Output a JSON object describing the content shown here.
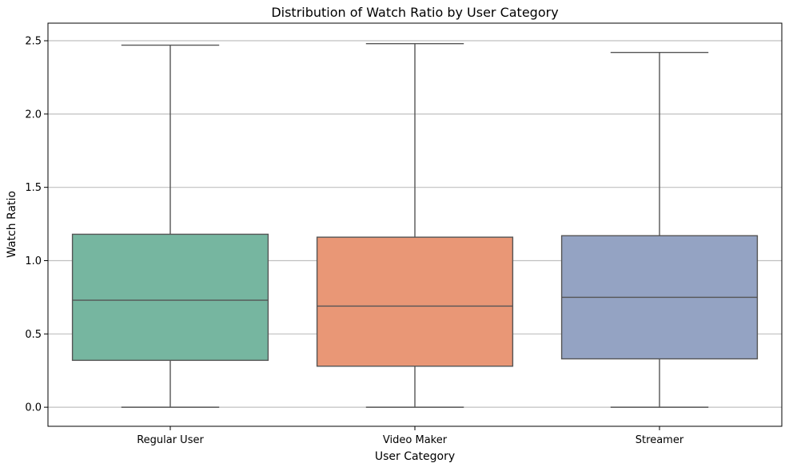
{
  "chart_data": {
    "type": "box",
    "title": "Distribution of Watch Ratio by User Category",
    "xlabel": "User Category",
    "ylabel": "Watch Ratio",
    "ylim": [
      -0.13,
      2.62
    ],
    "yticks": [
      0.0,
      0.5,
      1.0,
      1.5,
      2.0,
      2.5
    ],
    "ytick_labels": [
      "0.0",
      "0.5",
      "1.0",
      "1.5",
      "2.0",
      "2.5"
    ],
    "grid": "y",
    "categories": [
      "Regular User",
      "Video Maker",
      "Streamer"
    ],
    "boxes": [
      {
        "category": "Regular User",
        "whisker_low": 0.0,
        "q1": 0.32,
        "median": 0.73,
        "q3": 1.18,
        "whisker_high": 2.47,
        "color": "#76b6a0"
      },
      {
        "category": "Video Maker",
        "whisker_low": 0.0,
        "q1": 0.28,
        "median": 0.69,
        "q3": 1.16,
        "whisker_high": 2.48,
        "color": "#e99776"
      },
      {
        "category": "Streamer",
        "whisker_low": 0.0,
        "q1": 0.33,
        "median": 0.75,
        "q3": 1.17,
        "whisker_high": 2.42,
        "color": "#94a3c3"
      }
    ]
  }
}
